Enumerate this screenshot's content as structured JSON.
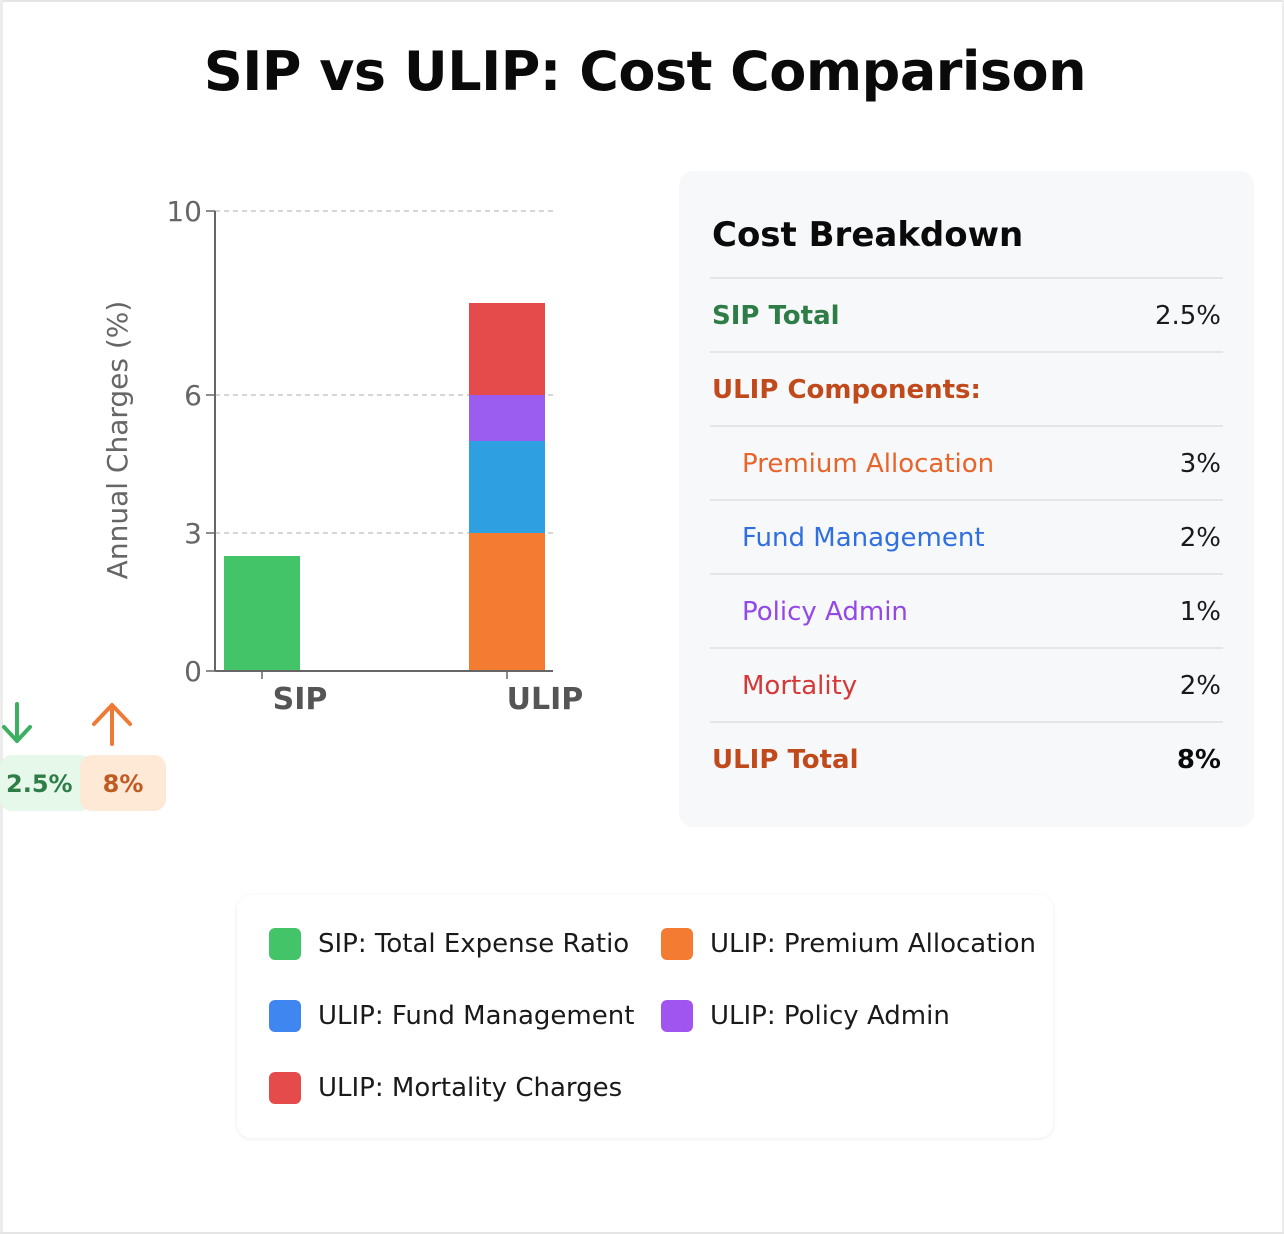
{
  "page": {
    "title": "SIP vs ULIP: Cost Comparison"
  },
  "chart_data": {
    "type": "bar",
    "stacked": true,
    "categories": [
      "SIP",
      "ULIP"
    ],
    "ylabel": "Annual Charges (%)",
    "xlabel": "",
    "ylim": [
      0,
      10
    ],
    "yticks": [
      0,
      3,
      6,
      10
    ],
    "grid": true,
    "series": [
      {
        "name": "SIP: Total Expense Ratio",
        "values": [
          2.5,
          0
        ],
        "color": "#44c468"
      },
      {
        "name": "ULIP: Premium Allocation",
        "values": [
          0,
          3
        ],
        "color": "#f37b32"
      },
      {
        "name": "ULIP: Fund Management",
        "values": [
          0,
          2
        ],
        "color": "#2e9fe0"
      },
      {
        "name": "ULIP: Policy Admin",
        "values": [
          0,
          1
        ],
        "color": "#9b5cf0"
      },
      {
        "name": "ULIP: Mortality Charges",
        "values": [
          0,
          2
        ],
        "color": "#e64b4b"
      }
    ]
  },
  "badges": {
    "sip": {
      "value": "2.5%",
      "icon": "arrow-down-icon",
      "color": "#3ab060"
    },
    "ulip": {
      "value": "8%",
      "icon": "arrow-up-icon",
      "color": "#ef7a35"
    }
  },
  "breakdown": {
    "title": "Cost Breakdown",
    "sip_total": {
      "label": "SIP Total",
      "value": "2.5%",
      "color": "#2e7d47"
    },
    "ulip_header": {
      "label": "ULIP Components:",
      "color": "#c04a1c"
    },
    "components": [
      {
        "label": "Premium Allocation",
        "value": "3%",
        "color": "#e8642a"
      },
      {
        "label": "Fund Management",
        "value": "2%",
        "color": "#2f6fe0"
      },
      {
        "label": "Policy Admin",
        "value": "1%",
        "color": "#9348e8"
      },
      {
        "label": "Mortality",
        "value": "2%",
        "color": "#d63838"
      }
    ],
    "ulip_total": {
      "label": "ULIP Total",
      "value": "8%",
      "color": "#c04a1c"
    }
  },
  "legend": {
    "items": [
      {
        "label": "SIP: Total Expense Ratio",
        "color": "#44c468"
      },
      {
        "label": "ULIP: Premium Allocation",
        "color": "#f37b32"
      },
      {
        "label": "ULIP: Fund Management",
        "color": "#3f86f0"
      },
      {
        "label": "ULIP: Policy Admin",
        "color": "#a155f0"
      },
      {
        "label": "ULIP: Mortality Charges",
        "color": "#e64b4b"
      }
    ]
  }
}
